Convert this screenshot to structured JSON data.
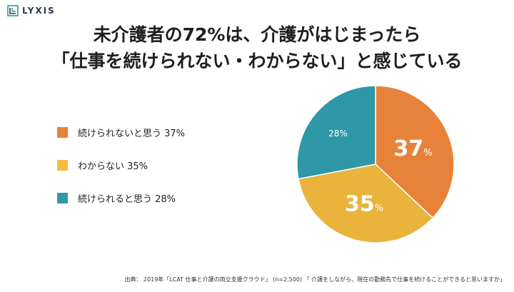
{
  "brand": {
    "logo_text": "LYXIS"
  },
  "title": {
    "line1": "未介護者の72%は、介護がはじまったら",
    "line2": "「仕事を続けられない・わからない」と感じている"
  },
  "legend": [
    {
      "label": "続けられないと思う 37%",
      "color": "#e8823a"
    },
    {
      "label": "わからない 35%",
      "color": "#f2bd3f"
    },
    {
      "label": "続けられると思う 28%",
      "color": "#2e9aaa"
    }
  ],
  "chart_data": {
    "type": "pie",
    "title": "未介護者の72%は、介護がはじまったら「仕事を続けられない・わからない」と感じている",
    "categories": [
      "続けられないと思う",
      "わからない",
      "続けられると思う"
    ],
    "values": [
      37,
      35,
      28
    ],
    "unit": "%",
    "colors": [
      "#e8823a",
      "#e9b33c",
      "#2e98a8"
    ],
    "slice_labels": [
      {
        "number": "37",
        "unit": "%"
      },
      {
        "number": "35",
        "unit": "%"
      },
      {
        "number": "28",
        "unit": "%"
      }
    ],
    "legend_position": "left"
  },
  "footnote": "出典： 2019年「LCAT 仕事と介護の両立支援クラウド」 (n=2,500) 「 介護をしながら、現在の勤務先で仕事を続けることができると思いますか」"
}
